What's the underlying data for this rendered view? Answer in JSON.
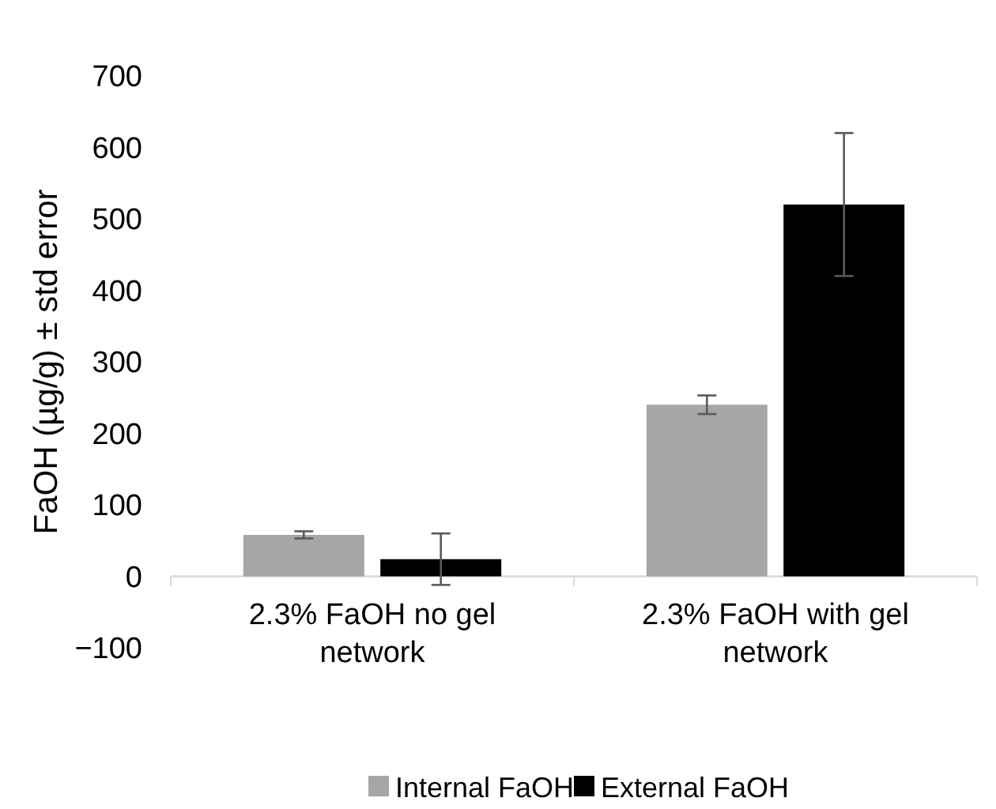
{
  "chart_data": {
    "type": "bar",
    "ylabel": "FaOH (µg/g) ± std error",
    "categories": [
      "2.3% FaOH no gel network",
      "2.3% FaOH with gel network"
    ],
    "series": [
      {
        "name": "Internal FaOH",
        "color": "#a6a6a6",
        "values": [
          58,
          240
        ],
        "errors": [
          5,
          13
        ]
      },
      {
        "name": "External FaOH",
        "color": "#000000",
        "values": [
          24,
          520
        ],
        "errors": [
          36,
          100
        ]
      }
    ],
    "ylim": [
      -100,
      700
    ],
    "yticks": [
      -100,
      0,
      100,
      200,
      300,
      400,
      500,
      600,
      700
    ],
    "grid": false,
    "legend": "bottom"
  }
}
